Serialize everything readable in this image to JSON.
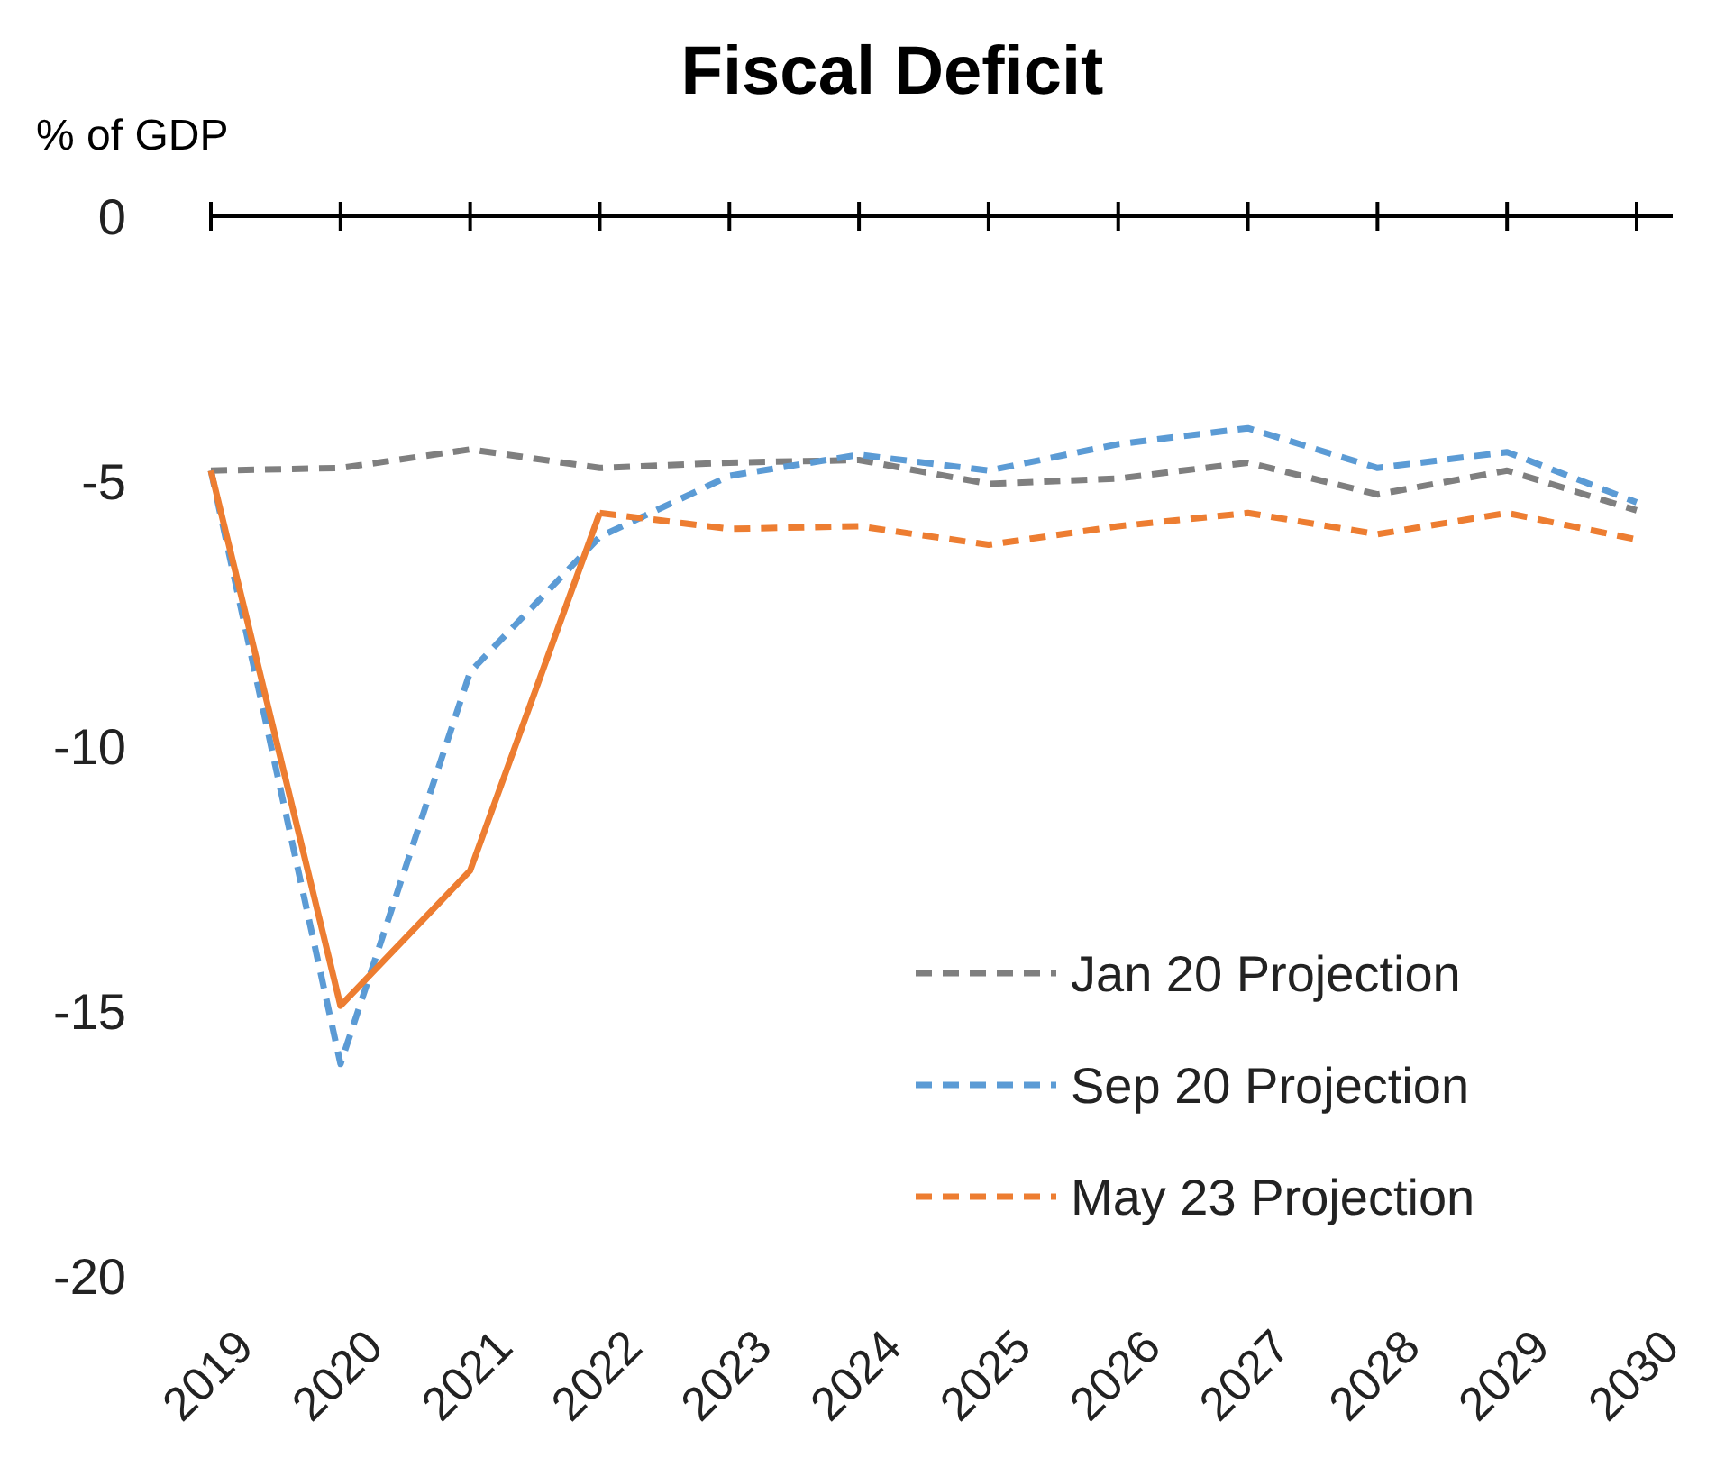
{
  "chart_data": {
    "type": "line",
    "title": "Fiscal Deficit",
    "ylabel": "% of GDP",
    "categories": [
      "2019",
      "2020",
      "2021",
      "2022",
      "2023",
      "2024",
      "2025",
      "2026",
      "2027",
      "2028",
      "2029",
      "2030"
    ],
    "ylim": [
      -20,
      0
    ],
    "yticks": [
      0,
      -5,
      -10,
      -15,
      -20
    ],
    "grid": false,
    "legend": "bottom right",
    "ref_lines": [
      {
        "axis": "y",
        "value": 0,
        "color": "#000000"
      }
    ],
    "series": [
      {
        "name": "Jan 20 Projection",
        "color": "#7f7f7f",
        "line_style": "dashed",
        "values": [
          -4.8,
          -4.75,
          -4.4,
          -4.75,
          -4.65,
          -4.6,
          -5.05,
          -4.95,
          -4.65,
          -5.25,
          -4.8,
          -5.55
        ]
      },
      {
        "name": "Sep 20 Projection",
        "color": "#5b9bd5",
        "line_style": "dashed",
        "values": [
          -4.8,
          -16.0,
          -8.6,
          -6.05,
          -4.9,
          -4.5,
          -4.8,
          -4.3,
          -4.0,
          -4.75,
          -4.45,
          -5.4
        ]
      },
      {
        "color": "#ed7d31",
        "line_style": "solid",
        "values": [
          -4.8,
          -14.9,
          -12.35,
          -5.6,
          null,
          null,
          null,
          null,
          null,
          null,
          null,
          null
        ]
      },
      {
        "name": "May 23 Projection",
        "color": "#ed7d31",
        "line_style": "dashed",
        "values": [
          null,
          null,
          null,
          -5.6,
          -5.9,
          -5.85,
          -6.2,
          -5.85,
          -5.6,
          -6.0,
          -5.6,
          -6.1
        ]
      }
    ]
  }
}
